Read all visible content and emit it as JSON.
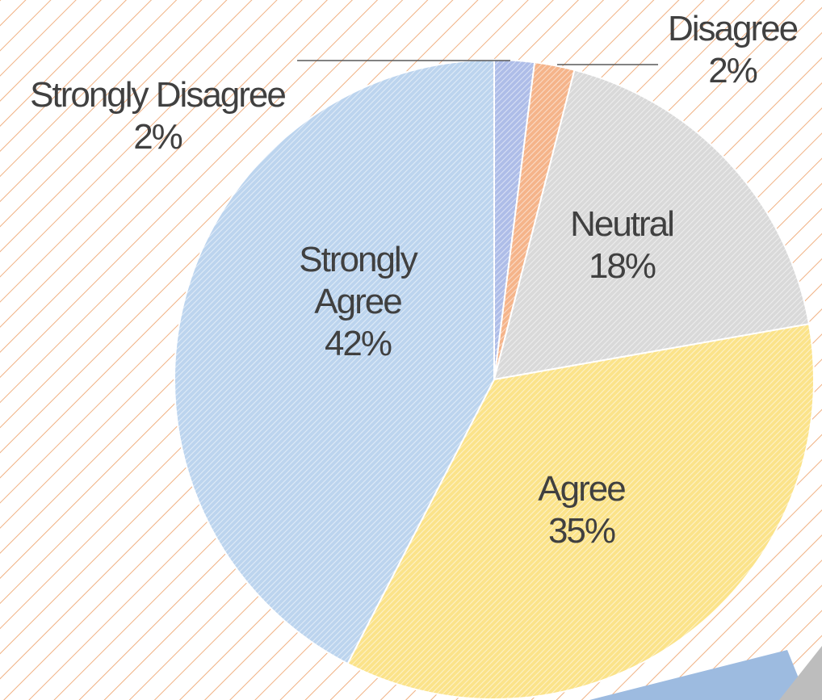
{
  "chart_data": {
    "type": "pie",
    "categories": [
      "Strongly Disagree",
      "Disagree",
      "Neutral",
      "Agree",
      "Strongly Agree"
    ],
    "values": [
      2,
      2,
      18,
      35,
      42
    ],
    "value_labels": [
      "2%",
      "2%",
      "18%",
      "35%",
      "42%"
    ],
    "colors": [
      "#aebde8",
      "#f5b48a",
      "#d9d9d9",
      "#fbe38a",
      "#bcd4ee"
    ]
  }
}
